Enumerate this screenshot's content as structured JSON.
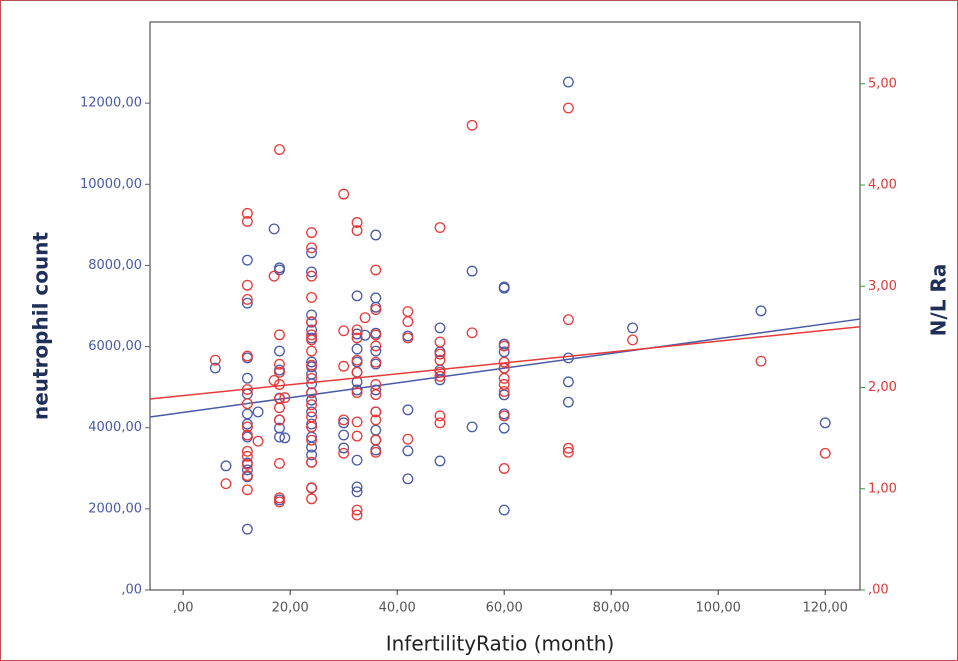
{
  "chart_data": {
    "type": "scatter",
    "x_label": "InfertilityRatio (month)",
    "y_label": "neutrophil count",
    "y2_label": "N/L Ra",
    "xlim": [
      -6.2,
      126.5
    ],
    "ylim": [
      0,
      14000
    ],
    "y2lim": [
      0,
      5.61
    ],
    "xticks": [
      {
        "value": 0,
        "label": ",00"
      },
      {
        "value": 20,
        "label": "20,00"
      },
      {
        "value": 40,
        "label": "40,00"
      },
      {
        "value": 60,
        "label": "60,00"
      },
      {
        "value": 80,
        "label": "80,00"
      },
      {
        "value": 100,
        "label": "100,00"
      },
      {
        "value": 120,
        "label": "120,00"
      }
    ],
    "yticks": [
      {
        "value": 0,
        "label": ",00"
      },
      {
        "value": 2000,
        "label": "2000,00"
      },
      {
        "value": 4000,
        "label": "4000,00"
      },
      {
        "value": 6000,
        "label": "6000,00"
      },
      {
        "value": 8000,
        "label": "8000,00"
      },
      {
        "value": 10000,
        "label": "10000,00"
      },
      {
        "value": 12000,
        "label": "12000,00"
      }
    ],
    "y2ticks": [
      {
        "value": 0,
        "label": ",00"
      },
      {
        "value": 1,
        "label": "1,00"
      },
      {
        "value": 2,
        "label": "2,00"
      },
      {
        "value": 3,
        "label": "3,00"
      },
      {
        "value": 4,
        "label": "4,00"
      },
      {
        "value": 5,
        "label": "5,00"
      }
    ],
    "series": [
      {
        "color": "#4a5aa8",
        "axis": "y",
        "x": [
          6,
          8,
          12,
          12,
          12,
          12,
          12,
          12,
          12,
          12,
          12,
          12,
          12,
          12,
          14,
          17,
          18,
          18,
          18,
          18,
          18,
          18,
          18,
          18,
          18,
          19,
          24,
          24,
          24,
          24,
          24,
          24,
          24,
          24,
          24,
          24,
          24,
          24,
          24,
          24,
          24,
          24,
          24,
          24,
          24,
          30,
          30,
          30,
          32.5,
          32.5,
          32.5,
          32.5,
          32.5,
          32.5,
          32.5,
          32.5,
          32.5,
          32.5,
          34,
          36,
          36,
          36,
          36,
          36,
          36,
          36,
          36,
          36,
          36,
          36,
          42,
          42,
          42,
          42,
          48,
          48,
          48,
          48,
          48,
          54,
          54,
          60,
          60,
          60,
          60,
          60,
          60,
          60,
          60,
          60,
          72,
          72,
          72,
          72,
          84,
          108,
          120
        ],
        "values": [
          5470,
          3060,
          1500,
          2790,
          2960,
          3130,
          3770,
          4090,
          4340,
          4830,
          5220,
          5720,
          7070,
          8130,
          4390,
          8900,
          7890,
          7940,
          2220,
          5890,
          5420,
          4730,
          4190,
          3990,
          3770,
          3750,
          8310,
          7840,
          6780,
          6600,
          6410,
          6210,
          5620,
          5500,
          5320,
          5080,
          4860,
          4680,
          4390,
          4090,
          3770,
          3520,
          3330,
          3150,
          2510,
          4120,
          3820,
          3500,
          7250,
          6310,
          5940,
          5620,
          5370,
          5130,
          4930,
          3200,
          2540,
          2420,
          6280,
          8750,
          7200,
          6970,
          6330,
          5890,
          5570,
          4930,
          4390,
          3940,
          3700,
          3450,
          6260,
          4440,
          3430,
          2740,
          6460,
          5870,
          5420,
          5180,
          3180,
          7860,
          4020,
          7470,
          7440,
          6060,
          5870,
          5470,
          4810,
          4340,
          3990,
          1970,
          12520,
          5720,
          5130,
          4630,
          6460,
          6880,
          4120
        ],
        "trend": {
          "x": [
            -6.2,
            126.5
          ],
          "values": [
            4263,
            6678
          ]
        }
      },
      {
        "color": "#e8393a",
        "axis": "y2",
        "x": [
          6,
          8,
          12,
          12,
          12,
          12,
          12,
          12,
          12,
          12,
          12,
          12,
          12,
          12,
          12,
          12,
          14,
          17,
          17,
          18,
          18,
          18,
          18,
          18,
          18,
          18,
          18,
          18,
          18,
          18,
          19,
          24,
          24,
          24,
          24,
          24,
          24,
          24,
          24,
          24,
          24,
          24,
          24,
          24,
          24,
          24,
          24,
          24,
          24,
          30,
          30,
          30,
          30,
          30,
          32.5,
          32.5,
          32.5,
          32.5,
          32.5,
          32.5,
          32.5,
          32.5,
          32.5,
          32.5,
          32.5,
          34,
          36,
          36,
          36,
          36,
          36,
          36,
          36,
          36,
          36,
          36,
          36,
          42,
          42,
          42,
          42,
          48,
          48,
          48,
          48,
          48,
          48,
          48,
          48,
          54,
          54,
          60,
          60,
          60,
          60,
          60,
          60,
          60,
          60,
          72,
          72,
          72,
          72,
          84,
          108,
          120
        ],
        "values": [
          2.27,
          1.05,
          3.72,
          3.64,
          3.01,
          2.87,
          2.31,
          1.98,
          1.84,
          1.61,
          1.53,
          1.37,
          1.32,
          1.24,
          1.13,
          0.99,
          1.47,
          3.1,
          2.07,
          4.35,
          2.52,
          2.23,
          2.15,
          2.03,
          1.89,
          1.8,
          1.68,
          1.25,
          0.91,
          0.87,
          1.9,
          3.53,
          3.38,
          3.1,
          2.89,
          2.65,
          2.52,
          2.47,
          2.36,
          2.22,
          2.09,
          1.95,
          1.83,
          1.71,
          1.61,
          1.48,
          1.26,
          1.01,
          0.9,
          3.91,
          2.56,
          2.21,
          1.68,
          1.35,
          3.63,
          3.55,
          2.57,
          2.49,
          2.27,
          2.15,
          1.95,
          1.66,
          1.52,
          0.79,
          0.74,
          2.69,
          3.16,
          2.77,
          2.52,
          2.41,
          2.25,
          2.03,
          1.93,
          1.76,
          1.68,
          1.48,
          1.36,
          2.75,
          2.65,
          2.49,
          1.49,
          3.58,
          2.45,
          2.33,
          2.27,
          2.15,
          2.11,
          1.72,
          1.65,
          4.59,
          2.54,
          2.41,
          2.25,
          2.19,
          2.09,
          2.03,
          1.96,
          1.72,
          1.2,
          4.76,
          2.67,
          1.4,
          1.36,
          2.47,
          2.26,
          1.35
        ],
        "trend": {
          "x": [
            -6.2,
            126.5
          ],
          "values": [
            1.887,
            2.6
          ]
        }
      }
    ]
  }
}
